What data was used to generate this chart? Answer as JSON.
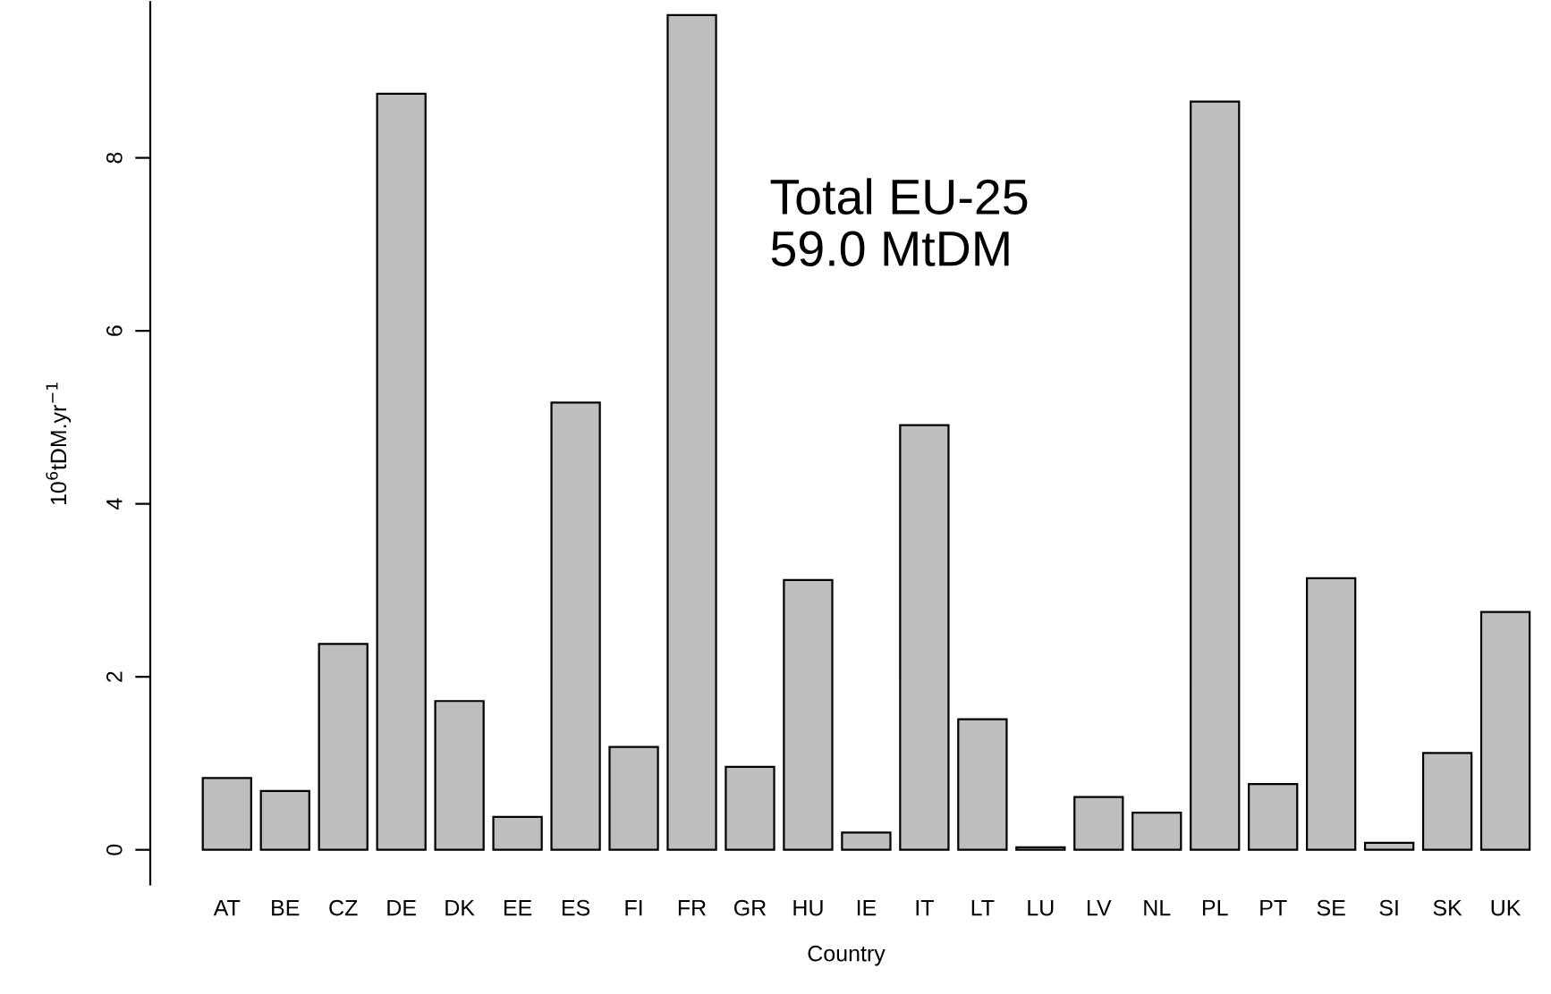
{
  "chart_data": {
    "type": "bar",
    "categories": [
      "AT",
      "BE",
      "CZ",
      "DE",
      "DK",
      "EE",
      "ES",
      "FI",
      "FR",
      "GR",
      "HU",
      "IE",
      "IT",
      "LT",
      "LU",
      "LV",
      "NL",
      "PL",
      "PT",
      "SE",
      "SI",
      "SK",
      "UK"
    ],
    "values": [
      0.83,
      0.68,
      2.38,
      8.74,
      1.72,
      0.38,
      5.17,
      1.19,
      9.65,
      0.96,
      3.12,
      0.2,
      4.91,
      1.51,
      0.03,
      0.61,
      0.43,
      8.65,
      0.76,
      3.14,
      0.08,
      1.12,
      2.75
    ],
    "color": "#bebebe",
    "xlabel": "Country",
    "ylabel": "10$^{6}$tDM.yr$^{−1}$",
    "ylim": [
      -0.4,
      9.8
    ],
    "yticks": [
      0,
      2,
      4,
      6,
      8
    ],
    "annotations": [
      "Total EU-25\n59.0 MtDM"
    ],
    "grid": false,
    "legend": false
  }
}
